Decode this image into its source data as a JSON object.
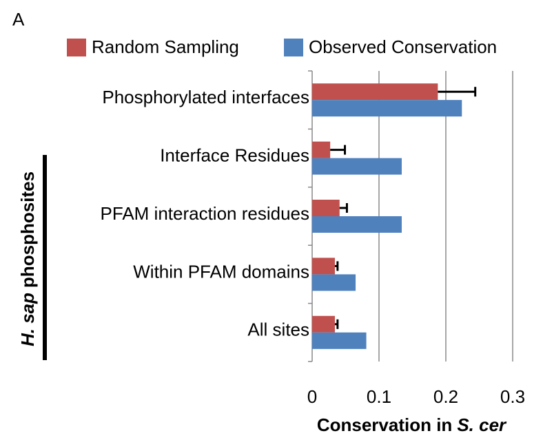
{
  "chart_data": {
    "type": "hbar",
    "panel_label": "A",
    "categories": [
      "Phosphorylated interfaces",
      "Interface Residues",
      "PFAM interaction residues",
      "Within PFAM domains",
      "All sites"
    ],
    "series": [
      {
        "name": "Random Sampling",
        "color": "#c0504d",
        "values": [
          0.188,
          0.027,
          0.041,
          0.034,
          0.034
        ],
        "errors": [
          0.056,
          0.022,
          0.011,
          0.004,
          0.004
        ]
      },
      {
        "name": "Observed Conservation",
        "color": "#4f81bd",
        "values": [
          0.224,
          0.134,
          0.134,
          0.065,
          0.081
        ]
      }
    ],
    "xlim": [
      0,
      0.3
    ],
    "xticks": [
      0,
      0.1,
      0.2,
      0.3
    ],
    "x_label": [
      "Conservation in",
      "S. cer"
    ],
    "y_label": [
      "H. sap",
      "phosphosites"
    ],
    "grid": true
  }
}
